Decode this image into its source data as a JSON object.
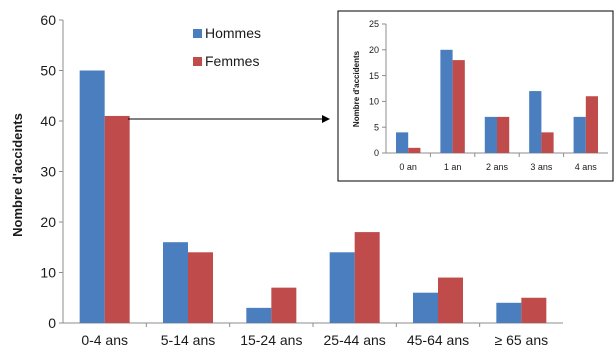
{
  "chart_data": [
    {
      "type": "bar",
      "title": "",
      "xlabel": "",
      "ylabel": "Nombre d'accidents",
      "ylim": [
        0,
        60
      ],
      "yticks": [
        0,
        10,
        20,
        30,
        40,
        50,
        60
      ],
      "categories": [
        "0-4 ans",
        "5-14 ans",
        "15-24 ans",
        "25-44 ans",
        "45-64 ans",
        "≥ 65 ans"
      ],
      "series": [
        {
          "name": "Hommes",
          "color": "#4a7ebf",
          "values": [
            50,
            16,
            3,
            14,
            6,
            4
          ]
        },
        {
          "name": "Femmes",
          "color": "#bf4b4b",
          "values": [
            41,
            14,
            7,
            18,
            9,
            5
          ]
        }
      ],
      "legend": "top-center",
      "grid": false
    },
    {
      "type": "bar",
      "title": "",
      "xlabel": "",
      "ylabel": "Nombre d'accidents",
      "ylim": [
        0,
        25
      ],
      "yticks": [
        0,
        5,
        10,
        15,
        20,
        25
      ],
      "categories": [
        "0 an",
        "1 an",
        "2 ans",
        "3 ans",
        "4 ans"
      ],
      "series": [
        {
          "name": "Hommes",
          "color": "#4a7ebf",
          "values": [
            4,
            20,
            7,
            12,
            7
          ]
        },
        {
          "name": "Femmes",
          "color": "#bf4b4b",
          "values": [
            1,
            18,
            7,
            4,
            11
          ]
        }
      ],
      "legend": "none",
      "grid": false
    }
  ]
}
